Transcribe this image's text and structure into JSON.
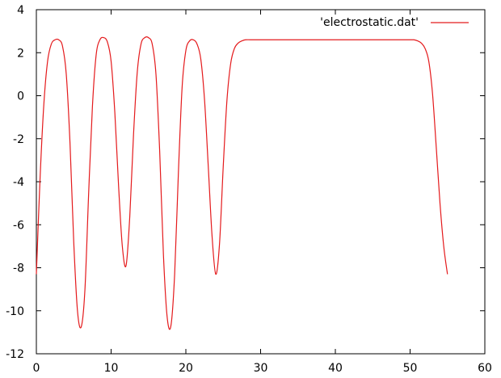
{
  "chart_data": {
    "type": "line",
    "title": "",
    "xlabel": "",
    "ylabel": "",
    "xlim": [
      0,
      60
    ],
    "ylim": [
      -12,
      4
    ],
    "xticks": [
      0,
      10,
      20,
      30,
      40,
      50,
      60
    ],
    "yticks": [
      -12,
      -10,
      -8,
      -6,
      -4,
      -2,
      0,
      2,
      4
    ],
    "grid": false,
    "legend_position": "top-right",
    "series": [
      {
        "name": "'electrostatic.dat'",
        "color": "#e41a1c",
        "x": [
          0,
          0.5,
          1,
          1.5,
          2,
          2.5,
          3,
          3.5,
          4,
          4.5,
          5,
          5.5,
          6,
          6.5,
          7,
          7.5,
          8,
          8.5,
          9,
          9.5,
          10,
          10.5,
          11,
          11.5,
          12,
          12.5,
          13,
          13.5,
          14,
          14.5,
          15,
          15.5,
          16,
          16.5,
          17,
          17.5,
          18,
          18.5,
          19,
          19.5,
          20,
          20.5,
          21,
          21.5,
          22,
          22.5,
          23,
          23.5,
          24,
          24.5,
          25,
          25.5,
          26,
          26.5,
          27,
          27.5,
          28,
          29,
          30,
          35,
          40,
          45,
          50,
          50.5,
          51,
          51.5,
          52,
          52.5,
          53,
          53.5,
          54,
          54.5,
          55
        ],
        "y": [
          -8.3,
          -3.8,
          -0.4,
          1.6,
          2.4,
          2.6,
          2.6,
          2.3,
          1.0,
          -2.2,
          -6.8,
          -10.0,
          -10.75,
          -9.0,
          -4.5,
          -0.5,
          1.9,
          2.6,
          2.7,
          2.5,
          1.6,
          -0.8,
          -4.2,
          -7.0,
          -7.9,
          -5.6,
          -1.8,
          1.1,
          2.4,
          2.7,
          2.7,
          2.4,
          1.0,
          -2.6,
          -7.4,
          -10.3,
          -10.7,
          -8.3,
          -3.6,
          0.4,
          2.1,
          2.55,
          2.6,
          2.4,
          1.7,
          -0.2,
          -3.3,
          -6.5,
          -8.3,
          -6.9,
          -3.3,
          -0.2,
          1.5,
          2.2,
          2.45,
          2.55,
          2.6,
          2.6,
          2.6,
          2.6,
          2.6,
          2.6,
          2.6,
          2.6,
          2.55,
          2.45,
          2.2,
          1.6,
          0.1,
          -2.4,
          -5.0,
          -7.0,
          -8.3
        ]
      }
    ]
  }
}
